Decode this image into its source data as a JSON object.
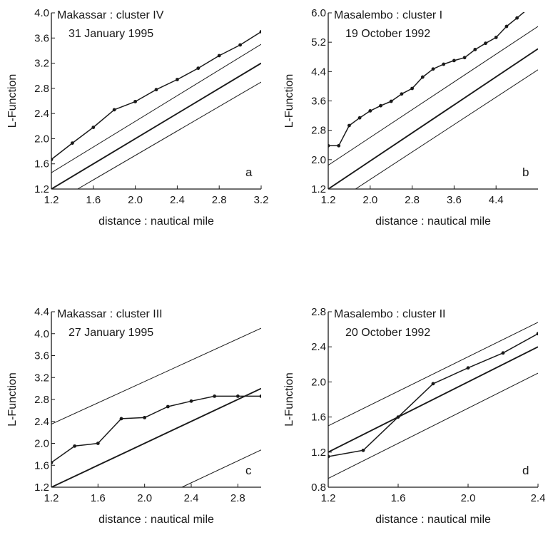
{
  "chart_data": [
    {
      "type": "line",
      "panel_label": "a",
      "title": "Makassar : cluster IV",
      "subtitle": "31 January 1995",
      "xlabel": "distance : nautical mile",
      "ylabel": "L-Function",
      "xlim": [
        1.2,
        3.2
      ],
      "ylim": [
        1.2,
        4.0
      ],
      "xticks": [
        "1.2",
        "1.6",
        "2.0",
        "2.4",
        "2.8",
        "3.2"
      ],
      "yticks": [
        "1.2",
        "1.6",
        "2.0",
        "2.4",
        "2.8",
        "3.2",
        "3.6",
        "4.0"
      ],
      "series": [
        {
          "role": "observed",
          "x": [
            1.2,
            1.4,
            1.6,
            1.8,
            2.0,
            2.2,
            2.4,
            2.6,
            2.8,
            3.0,
            3.2
          ],
          "y": [
            1.67,
            1.93,
            2.18,
            2.46,
            2.59,
            2.78,
            2.94,
            3.12,
            3.32,
            3.49,
            3.7
          ]
        },
        {
          "role": "upper",
          "x": [
            1.2,
            3.2
          ],
          "y": [
            1.46,
            3.5
          ]
        },
        {
          "role": "expected",
          "x": [
            1.2,
            3.2
          ],
          "y": [
            1.2,
            3.2
          ]
        },
        {
          "role": "lower",
          "x": [
            1.45,
            3.2
          ],
          "y": [
            1.2,
            2.9
          ]
        }
      ]
    },
    {
      "type": "line",
      "panel_label": "b",
      "title": "Masalembo : cluster I",
      "subtitle": "19 October 1992",
      "xlabel": "distance : nautical mile",
      "ylabel": "L-Function",
      "xlim": [
        1.2,
        5.2
      ],
      "ylim": [
        1.2,
        6.0
      ],
      "xticks": [
        "1.2",
        "2.0",
        "2.8",
        "3.6",
        "4.4"
      ],
      "yticks": [
        "1.2",
        "2.0",
        "2.8",
        "3.6",
        "4.4",
        "5.2",
        "6.0"
      ],
      "series": [
        {
          "role": "observed",
          "x": [
            1.2,
            1.4,
            1.6,
            1.8,
            2.0,
            2.2,
            2.4,
            2.6,
            2.8,
            3.0,
            3.2,
            3.4,
            3.6,
            3.8,
            4.0,
            4.2,
            4.4,
            4.6,
            4.8,
            5.0,
            5.2
          ],
          "y": [
            2.38,
            2.38,
            2.93,
            3.14,
            3.33,
            3.47,
            3.59,
            3.79,
            3.94,
            4.25,
            4.47,
            4.6,
            4.7,
            4.78,
            5.0,
            5.17,
            5.33,
            5.63,
            5.86,
            6.1,
            6.3
          ]
        },
        {
          "role": "upper",
          "x": [
            1.2,
            5.2
          ],
          "y": [
            1.85,
            5.63
          ]
        },
        {
          "role": "expected",
          "x": [
            1.2,
            5.2
          ],
          "y": [
            1.2,
            5.02
          ]
        },
        {
          "role": "lower",
          "x": [
            1.72,
            5.2
          ],
          "y": [
            1.2,
            4.45
          ]
        }
      ]
    },
    {
      "type": "line",
      "panel_label": "c",
      "title": "Makassar : cluster III",
      "subtitle": "27 January 1995",
      "xlabel": "distance : nautical mile",
      "ylabel": "L-Function",
      "xlim": [
        1.2,
        3.0
      ],
      "ylim": [
        1.2,
        4.4
      ],
      "xticks": [
        "1.2",
        "1.6",
        "2.0",
        "2.4",
        "2.8"
      ],
      "yticks": [
        "1.2",
        "1.6",
        "2.0",
        "2.4",
        "2.8",
        "3.2",
        "3.6",
        "4.0",
        "4.4"
      ],
      "series": [
        {
          "role": "observed",
          "x": [
            1.2,
            1.4,
            1.6,
            1.8,
            2.0,
            2.2,
            2.4,
            2.6,
            2.8,
            3.0
          ],
          "y": [
            1.65,
            1.95,
            2.0,
            2.45,
            2.47,
            2.67,
            2.77,
            2.86,
            2.86,
            2.86
          ]
        },
        {
          "role": "upper",
          "x": [
            1.2,
            3.0
          ],
          "y": [
            2.35,
            4.1
          ]
        },
        {
          "role": "expected",
          "x": [
            1.2,
            3.0
          ],
          "y": [
            1.2,
            3.0
          ]
        },
        {
          "role": "lower",
          "x": [
            2.32,
            3.0
          ],
          "y": [
            1.2,
            1.88
          ]
        }
      ]
    },
    {
      "type": "line",
      "panel_label": "d",
      "title": "Masalembo : cluster II",
      "subtitle": "20 October 1992",
      "xlabel": "distance : nautical mile",
      "ylabel": "L-Function",
      "xlim": [
        1.2,
        2.4
      ],
      "ylim": [
        0.8,
        2.8
      ],
      "xticks": [
        "1.2",
        "1.6",
        "2.0",
        "2.4"
      ],
      "yticks": [
        "0.8",
        "1.2",
        "1.6",
        "2.0",
        "2.4",
        "2.8"
      ],
      "series": [
        {
          "role": "observed",
          "x": [
            1.2,
            1.4,
            1.6,
            1.8,
            2.0,
            2.2,
            2.4
          ],
          "y": [
            1.15,
            1.22,
            1.6,
            1.98,
            2.16,
            2.33,
            2.55
          ]
        },
        {
          "role": "upper",
          "x": [
            1.2,
            2.4
          ],
          "y": [
            1.5,
            2.68
          ]
        },
        {
          "role": "expected",
          "x": [
            1.2,
            2.4
          ],
          "y": [
            1.2,
            2.4
          ]
        },
        {
          "role": "lower",
          "x": [
            1.2,
            2.4
          ],
          "y": [
            0.9,
            2.1
          ]
        }
      ]
    }
  ]
}
